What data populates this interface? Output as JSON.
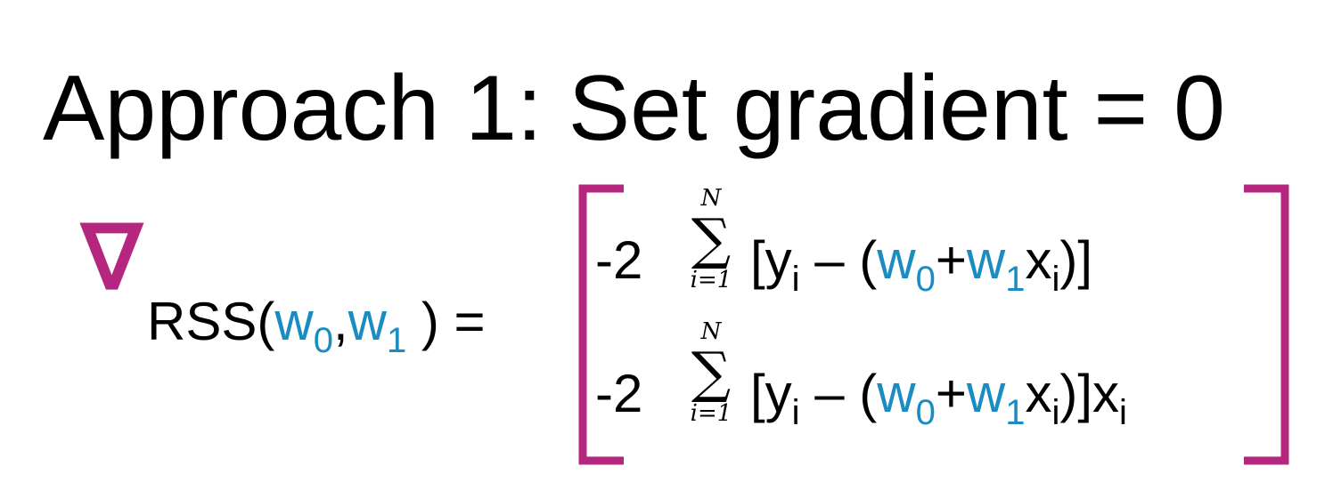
{
  "title": "Approach 1: Set gradient = 0",
  "gradient": {
    "symbol": "∇",
    "lhs": [
      "RSS(",
      "w",
      "0",
      ",",
      "w",
      "1",
      " )",
      "="
    ],
    "rows": [
      {
        "coef": "-2",
        "sigma": "∑",
        "upper": "N",
        "lower": "i=1",
        "terms": [
          "[y",
          "i",
          " – (",
          "w",
          "0",
          "+",
          "w",
          "1",
          "x",
          "i",
          ")]"
        ]
      },
      {
        "coef": "-2",
        "sigma": "∑",
        "upper": "N",
        "lower": "i=1",
        "terms": [
          "[y",
          "i",
          " – (",
          "w",
          "0",
          "+",
          "w",
          "1",
          "x",
          "i",
          ")]x",
          "i"
        ]
      }
    ]
  }
}
